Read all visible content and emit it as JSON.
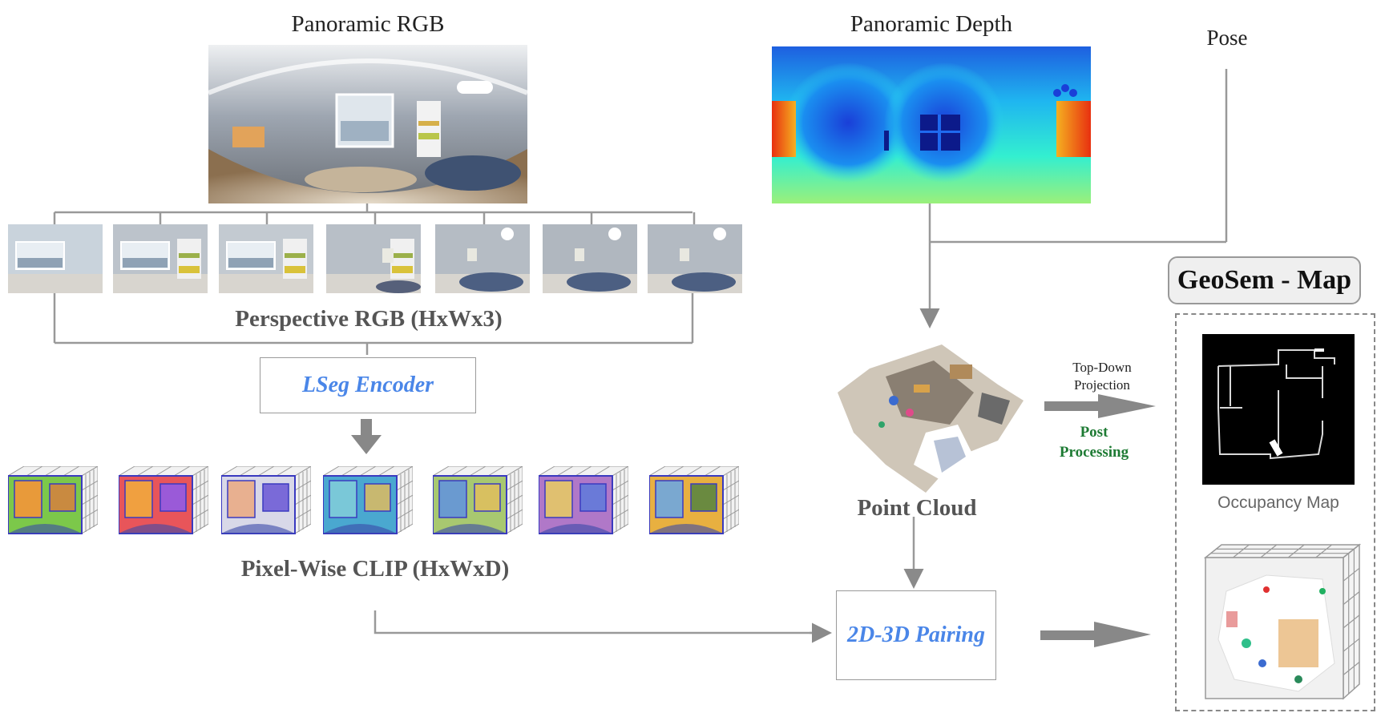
{
  "labels": {
    "pano_rgb": "Panoramic RGB",
    "pano_depth": "Panoramic Depth",
    "pose": "Pose",
    "perspective_rgb": "Perspective RGB (HxWx3)",
    "lseg_encoder": "LSeg Encoder",
    "pixel_wise_clip": "Pixel-Wise CLIP (HxWxD)",
    "point_cloud": "Point Cloud",
    "top_down_projection": "Top-Down\nProjection",
    "post_processing": "Post\nProcessing",
    "pairing": "2D-3D Pairing",
    "geosem_map": "GeoSem - Map",
    "occupancy_map": "Occupancy Map"
  },
  "colors": {
    "line_gray": "#999999",
    "arrow_gray": "#888888",
    "lseg_blue": "#4a86e8",
    "post_green": "#1e7b34",
    "depth_blue": "#1a3fd8",
    "depth_cyan": "#2cf0e0",
    "depth_red": "#e83010"
  },
  "perspective_views": 7,
  "clip_views": 7
}
